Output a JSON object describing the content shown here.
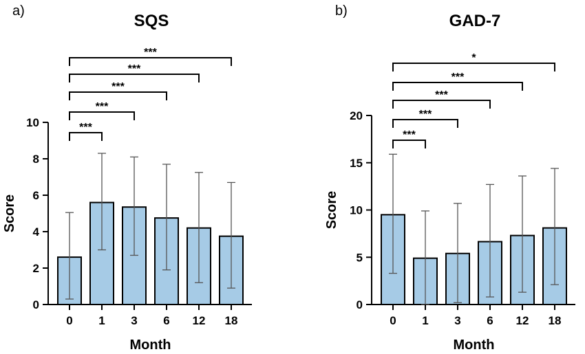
{
  "chart_data": [
    {
      "type": "bar",
      "panel_label": "a)",
      "title": "SQS",
      "xlabel": "Month",
      "ylabel": "Score",
      "categories": [
        "0",
        "1",
        "3",
        "6",
        "12",
        "18"
      ],
      "values": [
        2.6,
        5.6,
        5.35,
        4.75,
        4.2,
        3.75
      ],
      "error_lower": [
        0.3,
        3.0,
        2.7,
        1.9,
        1.2,
        0.9
      ],
      "error_upper": [
        5.05,
        8.3,
        8.1,
        7.7,
        7.25,
        6.7
      ],
      "ylim": [
        0,
        10
      ],
      "yticks": [
        "0",
        "2",
        "4",
        "6",
        "8",
        "10"
      ],
      "bar_color": "#a6cbe6",
      "comparisons": [
        {
          "from": "0",
          "to": "1",
          "label": "***"
        },
        {
          "from": "0",
          "to": "3",
          "label": "***"
        },
        {
          "from": "0",
          "to": "6",
          "label": "***"
        },
        {
          "from": "0",
          "to": "12",
          "label": "***"
        },
        {
          "from": "0",
          "to": "18",
          "label": "***"
        }
      ]
    },
    {
      "type": "bar",
      "panel_label": "b)",
      "title": "GAD-7",
      "xlabel": "Month",
      "ylabel": "Score",
      "categories": [
        "0",
        "1",
        "3",
        "6",
        "12",
        "18"
      ],
      "values": [
        9.5,
        4.9,
        5.4,
        6.65,
        7.3,
        8.1
      ],
      "error_lower": [
        3.3,
        0.0,
        0.2,
        0.8,
        1.3,
        2.1
      ],
      "error_upper": [
        15.9,
        9.9,
        10.7,
        12.7,
        13.6,
        14.4
      ],
      "ylim": [
        0,
        20
      ],
      "yticks": [
        "0",
        "5",
        "10",
        "15",
        "20"
      ],
      "bar_color": "#a6cbe6",
      "comparisons": [
        {
          "from": "0",
          "to": "1",
          "label": "***"
        },
        {
          "from": "0",
          "to": "3",
          "label": "***"
        },
        {
          "from": "0",
          "to": "6",
          "label": "***"
        },
        {
          "from": "0",
          "to": "12",
          "label": "***"
        },
        {
          "from": "0",
          "to": "18",
          "label": "*"
        }
      ]
    }
  ]
}
